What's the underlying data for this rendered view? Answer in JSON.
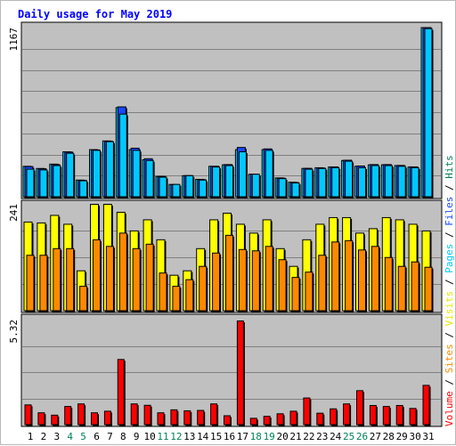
{
  "title": "Daily usage for May 2019",
  "colors": {
    "title": "#0000ff",
    "panel_bg": "#c0c0c0",
    "grid": "#808080",
    "hits": "#00d8ff",
    "files": "#1848ff",
    "pages": "#00c8ff",
    "visits": "#ffff00",
    "sites": "#ff8800",
    "volume": "#ff0000",
    "day_normal": "#000000",
    "day_weekend": "#00805a"
  },
  "chart_data": [
    {
      "type": "bar",
      "name": "hits-files-pages",
      "categories": [
        "1",
        "2",
        "3",
        "4",
        "5",
        "6",
        "7",
        "8",
        "9",
        "10",
        "11",
        "12",
        "13",
        "14",
        "15",
        "16",
        "17",
        "18",
        "19",
        "20",
        "21",
        "22",
        "23",
        "24",
        "25",
        "26",
        "27",
        "28",
        "29",
        "30",
        "31"
      ],
      "weekend_days": [
        "4",
        "5",
        "11",
        "12",
        "18",
        "19",
        "25",
        "26"
      ],
      "ylim": [
        0,
        1167
      ],
      "y_tick_label": "1167",
      "series": [
        {
          "name": "Hits",
          "values": [
            210,
            195,
            225,
            310,
            115,
            325,
            385,
            615,
            325,
            255,
            140,
            85,
            145,
            120,
            210,
            220,
            325,
            155,
            325,
            130,
            100,
            195,
            200,
            205,
            250,
            210,
            220,
            220,
            215,
            205,
            1167
          ]
        },
        {
          "name": "Files",
          "values": [
            208,
            193,
            222,
            308,
            113,
            323,
            383,
            620,
            335,
            262,
            140,
            83,
            146,
            118,
            210,
            222,
            340,
            155,
            330,
            128,
            98,
            196,
            198,
            206,
            252,
            212,
            222,
            222,
            216,
            206,
            1167
          ]
        },
        {
          "name": "Pages",
          "values": [
            190,
            185,
            215,
            300,
            110,
            320,
            380,
            570,
            320,
            250,
            135,
            85,
            145,
            115,
            205,
            215,
            310,
            155,
            320,
            125,
            95,
            190,
            195,
            200,
            245,
            200,
            215,
            215,
            210,
            200,
            1160
          ]
        }
      ]
    },
    {
      "type": "bar",
      "name": "visits-sites",
      "categories": [
        "1",
        "2",
        "3",
        "4",
        "5",
        "6",
        "7",
        "8",
        "9",
        "10",
        "11",
        "12",
        "13",
        "14",
        "15",
        "16",
        "17",
        "18",
        "19",
        "20",
        "21",
        "22",
        "23",
        "24",
        "25",
        "26",
        "27",
        "28",
        "29",
        "30",
        "31"
      ],
      "ylim": [
        0,
        241
      ],
      "y_tick_label": "241",
      "series": [
        {
          "name": "Visits",
          "values": [
            200,
            198,
            215,
            195,
            90,
            240,
            240,
            222,
            180,
            205,
            160,
            80,
            90,
            140,
            205,
            220,
            195,
            175,
            205,
            140,
            100,
            160,
            195,
            210,
            210,
            175,
            185,
            210,
            205,
            195,
            180
          ]
        },
        {
          "name": "Sites",
          "values": [
            125,
            125,
            140,
            140,
            55,
            160,
            145,
            175,
            140,
            150,
            85,
            55,
            70,
            100,
            130,
            170,
            138,
            135,
            145,
            115,
            75,
            87,
            125,
            155,
            158,
            137,
            145,
            120,
            100,
            110,
            98
          ]
        }
      ]
    },
    {
      "type": "bar",
      "name": "volume",
      "categories": [
        "1",
        "2",
        "3",
        "4",
        "5",
        "6",
        "7",
        "8",
        "9",
        "10",
        "11",
        "12",
        "13",
        "14",
        "15",
        "16",
        "17",
        "18",
        "19",
        "20",
        "21",
        "22",
        "23",
        "24",
        "25",
        "26",
        "27",
        "28",
        "29",
        "30",
        "31"
      ],
      "ylim": [
        0,
        5.32
      ],
      "y_tick_label": "5.32",
      "series": [
        {
          "name": "Volume",
          "values": [
            1.0,
            0.6,
            0.48,
            0.92,
            1.05,
            0.6,
            0.68,
            3.3,
            1.05,
            0.98,
            0.6,
            0.75,
            0.7,
            0.72,
            1.05,
            0.45,
            5.25,
            0.32,
            0.42,
            0.55,
            0.68,
            1.35,
            0.58,
            0.8,
            1.05,
            1.72,
            0.97,
            0.92,
            0.97,
            0.82,
            1.99
          ]
        }
      ]
    }
  ],
  "side_legend": [
    {
      "text": "Volume",
      "color": "#ff0000"
    },
    {
      "text": " / ",
      "color": "#000000"
    },
    {
      "text": "Sites",
      "color": "#ff8800"
    },
    {
      "text": " / ",
      "color": "#000000"
    },
    {
      "text": "Visits",
      "color": "#e8e800"
    },
    {
      "text": " / ",
      "color": "#000000"
    },
    {
      "text": "Pages",
      "color": "#00c8ff"
    },
    {
      "text": " / ",
      "color": "#000000"
    },
    {
      "text": "Files",
      "color": "#1848ff"
    },
    {
      "text": " / ",
      "color": "#000000"
    },
    {
      "text": "Hits",
      "color": "#00805a"
    }
  ]
}
